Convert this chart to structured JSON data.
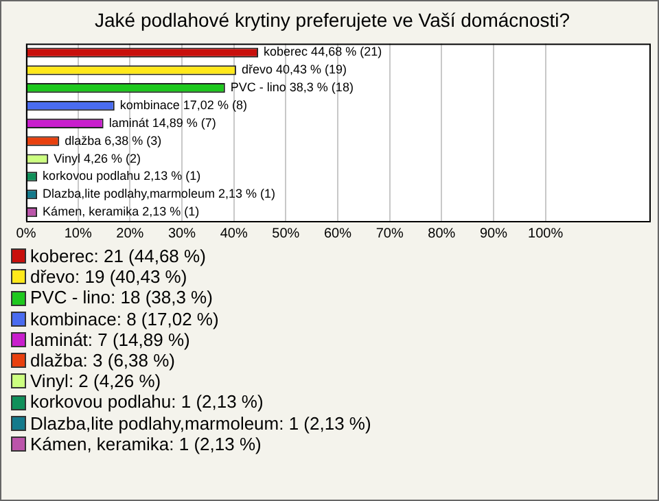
{
  "chart_data": {
    "type": "bar",
    "orientation": "horizontal",
    "title": "Jaké podlahové krytiny preferujete ve Vaší domácnosti?",
    "categories": [
      null,
      null,
      null,
      null,
      null,
      null,
      null,
      null,
      null,
      null
    ],
    "values": [
      44.68,
      40.43,
      38.3,
      17.02,
      14.89,
      6.38,
      4.26,
      2.13,
      2.13,
      2.13
    ],
    "colors": [
      "#c8100c",
      "#ffe81a",
      "#1ec81e",
      "#4a6cf0",
      "#c81ecc",
      "#e8400e",
      "#ccff80",
      "#10905a",
      "#147a8c",
      "#bb55aa"
    ],
    "value_labels": [
      "koberec 44,68 % (21)",
      "dřevo 40,43 % (19)",
      "PVC - lino 38,3 % (18)",
      "kombinace 17,02 % (8)",
      "laminát 14,89 % (7)",
      "dlažba 6,38 % (3)",
      "Vinyl 4,26 % (2)",
      "korkovou podlahu 2,13 % (1)",
      "Dlazba,lite podlahy,marmoleum 2,13 % (1)",
      "Kámen, keramika 2,13 % (1)"
    ],
    "xlim": [
      0,
      120
    ],
    "xticks": [
      {
        "value": 0,
        "label": "0%"
      },
      {
        "value": 10,
        "label": "10%"
      },
      {
        "value": 20,
        "label": "20%"
      },
      {
        "value": 30,
        "label": "30%"
      },
      {
        "value": 40,
        "label": "40%"
      },
      {
        "value": 50,
        "label": "50%"
      },
      {
        "value": 60,
        "label": "60%"
      },
      {
        "value": 70,
        "label": "70%"
      },
      {
        "value": 80,
        "label": "80%"
      },
      {
        "value": 90,
        "label": "90%"
      },
      {
        "value": 100,
        "label": "100%"
      }
    ],
    "tick_labels": "x",
    "grid": "x",
    "annotations": [
      "koberec: 21 (44,68 %)",
      "dřevo: 19 (40,43 %)",
      "PVC - lino: 18 (38,3 %)",
      "kombinace: 8 (17,02 %)",
      "laminát: 7 (14,89 %)",
      "dlažba: 3 (6,38 %)",
      "Vinyl: 2 (4,26 %)",
      "korkovou podlahu: 1 (2,13 %)",
      "Dlazba,lite podlahy,marmoleum: 1 (2,13 %)",
      "Kámen, keramika: 1 (2,13 %)"
    ]
  }
}
